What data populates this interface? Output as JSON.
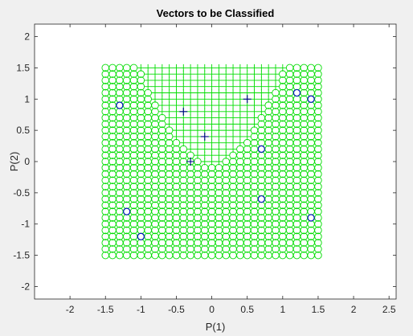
{
  "chart_data": {
    "type": "scatter",
    "title": "Vectors to be Classified",
    "xlabel": "P(1)",
    "ylabel": "P(2)",
    "xlim": [
      -2.5,
      2.6
    ],
    "ylim": [
      -2.2,
      2.2
    ],
    "xticks": [
      "-2",
      "-1.5",
      "-1",
      "-0.5",
      "0",
      "0.5",
      "1",
      "1.5",
      "2",
      "2.5"
    ],
    "xtick_values": [
      -2,
      -1.5,
      -1,
      -0.5,
      0,
      0.5,
      1,
      1.5,
      2,
      2.5
    ],
    "yticks": [
      "2",
      "1.5",
      "1",
      "0.5",
      "0",
      "-0.5",
      "-1",
      "-1.5",
      "-2"
    ],
    "ytick_values": [
      2,
      1.5,
      1,
      0.5,
      0,
      -0.5,
      -1,
      -1.5,
      -2
    ],
    "grid": false,
    "decision_region": {
      "range": [
        -1.5,
        1.5
      ],
      "step": 0.1,
      "color": "#00dd00",
      "plus_region_boundary": "y >= 1.5 * x^2 - 0.02",
      "outside_marker": "circle",
      "inside_marker": "plus"
    },
    "series": [
      {
        "marker": "plus",
        "color": "#00008b",
        "x": [
          -0.4,
          -0.1,
          0.5,
          -0.3
        ],
        "y": [
          0.8,
          0.4,
          1.0,
          0.0
        ]
      },
      {
        "marker": "circle",
        "color": "#0000cc",
        "x": [
          -1.3,
          1.2,
          1.4,
          0.7,
          0.7,
          -1.2,
          1.4,
          -1.0
        ],
        "y": [
          0.9,
          1.1,
          1.0,
          0.2,
          -0.6,
          -0.8,
          -0.9,
          -1.2
        ]
      }
    ]
  }
}
